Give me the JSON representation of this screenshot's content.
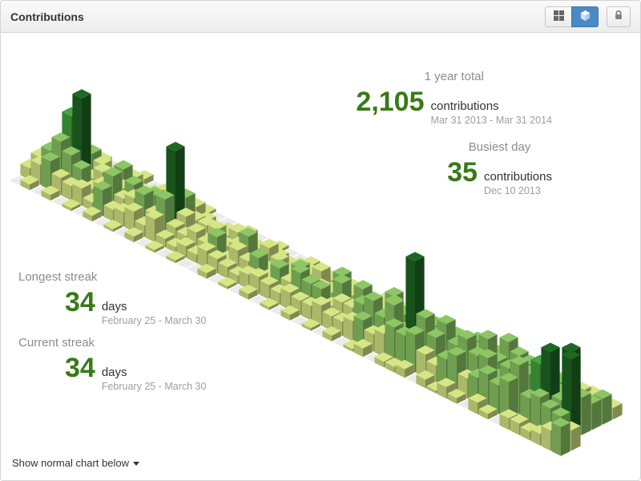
{
  "header": {
    "title": "Contributions",
    "toolbar": {
      "grid_view_icon": "grid-icon",
      "iso_view_icon": "cube-icon",
      "active_view": "isometric",
      "lock_icon": "lock-icon"
    }
  },
  "stats": {
    "year_total": {
      "label": "1 year total",
      "value": "2,105",
      "unit": "contributions",
      "range": "Mar 31 2013 - Mar 31 2014"
    },
    "busiest_day": {
      "label": "Busiest day",
      "value": "35",
      "unit": "contributions",
      "date": "Dec 10 2013"
    },
    "longest_streak": {
      "label": "Longest streak",
      "value": "34",
      "unit": "days",
      "range": "February 25 - March 30"
    },
    "current_streak": {
      "label": "Current streak",
      "value": "34",
      "unit": "days",
      "range": "February 25 - March 30"
    }
  },
  "footer": {
    "toggle_label": "Show normal chart below"
  },
  "colors": {
    "accent_green": "#387a16",
    "active_button_blue": "#4a89c7",
    "heatmap_palette": [
      "#ebebeb",
      "#d6e685",
      "#8cc665",
      "#44a340",
      "#1e6823"
    ]
  },
  "chart_data": {
    "type": "heatmap",
    "title": "Daily GitHub contributions rendered as isometric 3D bars",
    "x": "weeks, Mar 31 2013 - Mar 31 2014",
    "y": "day of week (Sun-Sat)",
    "total": 2105,
    "max_value": 35,
    "max_value_date": "Dec 10 2013",
    "value_thresholds": [
      1,
      9,
      18,
      27
    ],
    "weeks": [
      [
        0,
        4,
        6,
        2,
        3,
        5,
        1
      ],
      [
        2,
        7,
        10,
        4,
        6,
        3,
        0
      ],
      [
        0,
        10,
        15,
        22,
        7,
        5,
        1
      ],
      [
        2,
        6,
        12,
        30,
        9,
        4,
        0
      ],
      [
        0,
        5,
        9,
        4,
        7,
        2,
        0
      ],
      [
        1,
        6,
        4,
        8,
        3,
        2,
        0
      ],
      [
        0,
        3,
        7,
        5,
        9,
        4,
        2
      ],
      [
        2,
        9,
        12,
        6,
        4,
        1,
        0
      ],
      [
        0,
        4,
        6,
        9,
        3,
        2,
        1
      ],
      [
        1,
        5,
        8,
        4,
        6,
        2,
        0
      ],
      [
        0,
        7,
        11,
        9,
        5,
        3,
        1
      ],
      [
        2,
        4,
        6,
        3,
        8,
        2,
        0
      ],
      [
        0,
        8,
        13,
        28,
        10,
        5,
        1
      ],
      [
        1,
        3,
        5,
        7,
        4,
        2,
        0
      ],
      [
        0,
        2,
        4,
        3,
        4,
        0,
        0
      ],
      [
        1,
        4,
        7,
        2,
        3,
        2,
        0
      ],
      [
        0,
        3,
        5,
        8,
        4,
        2,
        1
      ],
      [
        0,
        6,
        9,
        4,
        7,
        3,
        0
      ],
      [
        2,
        5,
        3,
        6,
        2,
        1,
        0
      ],
      [
        0,
        4,
        8,
        11,
        5,
        2,
        1
      ],
      [
        1,
        3,
        6,
        4,
        7,
        2,
        0
      ],
      [
        0,
        5,
        9,
        3,
        4,
        1,
        0
      ],
      [
        2,
        6,
        4,
        8,
        3,
        2,
        1
      ],
      [
        0,
        5,
        9,
        4,
        6,
        2,
        0
      ],
      [
        1,
        4,
        6,
        9,
        5,
        2,
        0
      ],
      [
        0,
        6,
        11,
        5,
        8,
        3,
        1
      ],
      [
        2,
        5,
        9,
        6,
        3,
        2,
        0
      ],
      [
        0,
        5,
        9,
        6,
        10,
        4,
        1
      ],
      [
        1,
        7,
        5,
        11,
        5,
        2,
        0
      ],
      [
        0,
        5,
        8,
        4,
        9,
        2,
        1
      ],
      [
        2,
        5,
        8,
        5,
        4,
        1,
        0
      ],
      [
        0,
        7,
        11,
        8,
        6,
        4,
        1
      ],
      [
        1,
        9,
        14,
        7,
        12,
        5,
        0
      ],
      [
        3,
        6,
        10,
        13,
        5,
        2,
        1
      ],
      [
        0,
        8,
        16,
        11,
        7,
        4,
        2
      ],
      [
        2,
        12,
        9,
        14,
        8,
        4,
        1
      ],
      [
        2,
        11,
        35,
        13,
        9,
        5,
        2
      ],
      [
        3,
        13,
        17,
        9,
        6,
        3,
        1
      ],
      [
        0,
        8,
        12,
        15,
        9,
        4,
        2
      ],
      [
        3,
        6,
        5,
        9,
        5,
        2,
        0
      ],
      [
        1,
        10,
        13,
        8,
        11,
        6,
        2
      ],
      [
        4,
        13,
        17,
        11,
        8,
        3,
        0
      ],
      [
        2,
        7,
        13,
        17,
        10,
        5,
        2
      ],
      [
        0,
        9,
        14,
        11,
        16,
        7,
        3
      ],
      [
        4,
        12,
        9,
        6,
        13,
        5,
        1
      ],
      [
        2,
        10,
        14,
        12,
        12,
        6,
        1
      ],
      [
        0,
        13,
        17,
        12,
        10,
        5,
        3
      ],
      [
        4,
        0,
        7,
        14,
        9,
        8,
        3
      ],
      [
        4,
        11,
        21,
        8,
        11,
        7,
        3
      ],
      [
        3,
        13,
        27,
        11,
        8,
        8,
        5
      ],
      [
        4,
        11,
        12,
        27,
        8,
        7,
        3
      ],
      [
        7,
        10,
        28,
        13,
        9,
        9,
        4
      ],
      [
        10,
        7
      ]
    ]
  }
}
